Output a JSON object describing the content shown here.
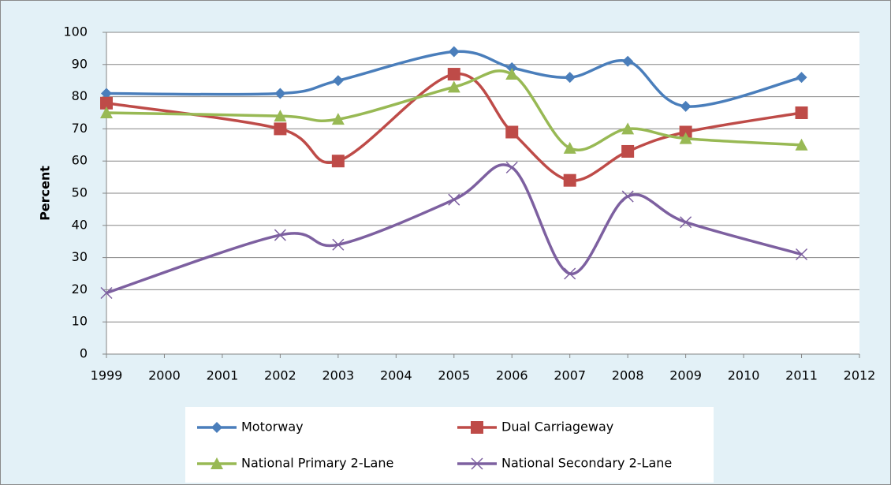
{
  "chart_data": {
    "type": "line",
    "y_label": "Percent",
    "x": [
      1999,
      2002,
      2003,
      2005,
      2006,
      2007,
      2008,
      2009,
      2011
    ],
    "xlim": [
      1999,
      2012
    ],
    "xticks": [
      1999,
      2000,
      2001,
      2002,
      2003,
      2004,
      2005,
      2006,
      2007,
      2008,
      2009,
      2010,
      2011,
      2012
    ],
    "ylim": [
      0,
      100
    ],
    "yticks": [
      0,
      10,
      20,
      30,
      40,
      50,
      60,
      70,
      80,
      90,
      100
    ],
    "grid": true,
    "smooth": true,
    "legend": "bottom",
    "series": [
      {
        "name": "Motorway",
        "color": "#4a7ebb",
        "marker": "diamond",
        "values": [
          81,
          81,
          85,
          94,
          89,
          86,
          91,
          77,
          86
        ]
      },
      {
        "name": "Dual Carriageway",
        "color": "#be4b48",
        "marker": "square",
        "values": [
          78,
          70,
          60,
          87,
          69,
          54,
          63,
          69,
          75
        ]
      },
      {
        "name": "National Primary 2-Lane",
        "color": "#98b954",
        "marker": "triangle",
        "values": [
          75,
          74,
          73,
          83,
          87,
          64,
          70,
          67,
          65
        ]
      },
      {
        "name": "National Secondary 2-Lane",
        "color": "#7d60a0",
        "marker": "cross",
        "values": [
          19,
          37,
          34,
          48,
          58,
          25,
          49,
          41,
          31
        ]
      }
    ]
  }
}
